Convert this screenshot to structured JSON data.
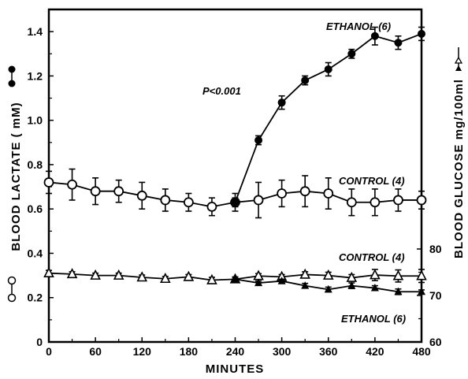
{
  "chart_data": {
    "type": "line",
    "xlabel": "MINUTES",
    "ylabel_left": "BLOOD LACTATE ( mM)",
    "ylabel_right": "BLOOD GLUCOSE mg/100ml",
    "xlim": [
      0,
      480
    ],
    "ylim_left": [
      0,
      1.5
    ],
    "ylim_right": [
      60,
      84
    ],
    "x_ticks": [
      "0",
      "60",
      "120",
      "180",
      "240",
      "300",
      "360",
      "420",
      "480"
    ],
    "y_left_ticks": [
      "0",
      "0.2",
      "0.4",
      "0.6",
      "0.8",
      "1.0",
      "1.2",
      "1.4"
    ],
    "y_right_ticks": [
      "60",
      "70",
      "80"
    ],
    "series": [
      {
        "name": "CONTROL(4)",
        "axis": "left",
        "x": [
          0,
          30,
          60,
          90,
          120,
          150,
          180,
          210,
          240,
          270,
          300,
          330,
          360,
          390,
          420,
          450,
          480
        ],
        "values": [
          0.72,
          0.71,
          0.68,
          0.68,
          0.66,
          0.64,
          0.63,
          0.61,
          0.63,
          0.64,
          0.67,
          0.68,
          0.67,
          0.63,
          0.63,
          0.64,
          0.64
        ],
        "errors": [
          0.05,
          0.07,
          0.06,
          0.05,
          0.06,
          0.05,
          0.04,
          0.04,
          0.04,
          0.08,
          0.06,
          0.07,
          0.07,
          0.06,
          0.06,
          0.05,
          0.04
        ]
      },
      {
        "name": "ETHANOL(6)",
        "axis": "left",
        "x": [
          240,
          270,
          300,
          330,
          360,
          390,
          420,
          450,
          480
        ],
        "values": [
          0.63,
          0.91,
          1.08,
          1.18,
          1.23,
          1.3,
          1.38,
          1.35,
          1.39
        ],
        "errors": [
          0.02,
          0.02,
          0.03,
          0.02,
          0.03,
          0.02,
          0.04,
          0.03,
          0.03
        ]
      },
      {
        "name": "CONTROL(4)",
        "axis": "right",
        "x": [
          0,
          30,
          60,
          90,
          120,
          150,
          180,
          210,
          240,
          270,
          300,
          330,
          360,
          390,
          420,
          450,
          480
        ],
        "values": [
          74.8,
          74.6,
          74.3,
          74.3,
          73.9,
          73.6,
          74.0,
          73.3,
          73.5,
          74.2,
          74.0,
          74.5,
          74.3,
          73.8,
          74.4,
          74.2,
          74.2
        ],
        "errors": [
          0.6,
          0.5,
          0.5,
          0.5,
          0.5,
          0.5,
          0.5,
          0.6,
          0.5,
          0.5,
          0.5,
          0.6,
          0.7,
          0.7,
          1.2,
          1.3,
          1.4
        ]
      },
      {
        "name": "ETHANOL(6)",
        "axis": "right",
        "x": [
          240,
          270,
          300,
          330,
          360,
          390,
          420,
          450,
          480
        ],
        "values": [
          73.5,
          72.7,
          73.1,
          72.1,
          71.3,
          72.1,
          71.6,
          70.8,
          70.8
        ],
        "errors": [
          0.4,
          0.4,
          0.4,
          0.5,
          0.5,
          0.6,
          0.5,
          0.6,
          0.4
        ]
      }
    ],
    "annotations": [
      "ETHANOL (6)",
      "P<0.001",
      "CONTROL (4)",
      "CONTROL (4)",
      "ETHANOL (6)"
    ],
    "grid": false,
    "legend": "none"
  },
  "colors": {
    "ink": "#000000",
    "background": "#ffffff"
  }
}
